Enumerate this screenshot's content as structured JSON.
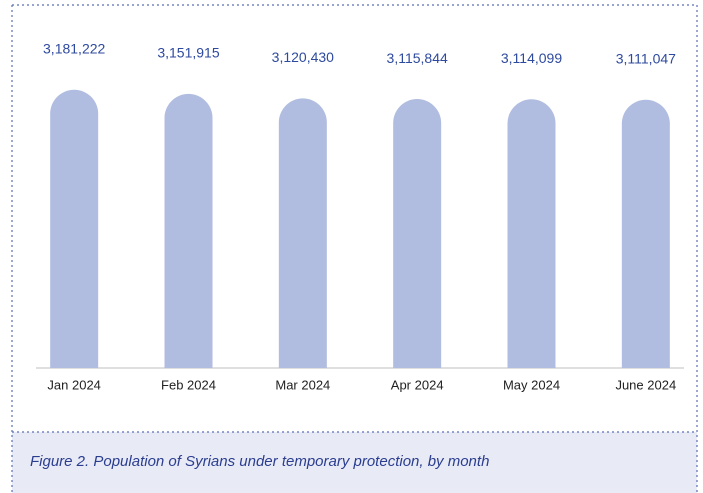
{
  "chart_data": {
    "type": "bar",
    "title": "Figure 2. Population of Syrians under temporary protection, by month",
    "categories": [
      "Jan 2024",
      "Feb 2024",
      "Mar 2024",
      "Apr 2024",
      "May 2024",
      "June 2024"
    ],
    "values": [
      3181222,
      3151915,
      3120430,
      3115844,
      3114099,
      3111047
    ],
    "value_labels": [
      "3,181,222",
      "3,151,915",
      "3,120,430",
      "3,115,844",
      "3,114,099",
      "3,111,047"
    ],
    "color": "#b0bde0",
    "ylim": [
      1230000,
      3530000
    ]
  }
}
